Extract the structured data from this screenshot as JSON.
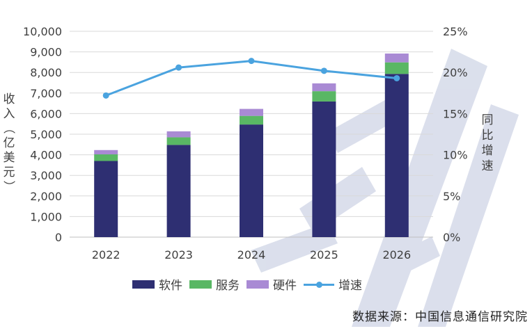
{
  "chart_data": {
    "type": "bar",
    "stacked": true,
    "categories": [
      "2022",
      "2023",
      "2024",
      "2025",
      "2026"
    ],
    "series": [
      {
        "name": "软件",
        "type": "bar",
        "color": "#2e2f72",
        "values": [
          3700,
          4480,
          5470,
          6590,
          7930
        ]
      },
      {
        "name": "服务",
        "type": "bar",
        "color": "#59b764",
        "values": [
          320,
          370,
          420,
          500,
          560
        ]
      },
      {
        "name": "硬件",
        "type": "bar",
        "color": "#a98ad4",
        "values": [
          210,
          290,
          340,
          380,
          430
        ]
      },
      {
        "name": "增速",
        "type": "line",
        "color": "#4aa3df",
        "axis": "right",
        "values": [
          17.2,
          20.6,
          21.4,
          20.2,
          19.3
        ]
      }
    ],
    "ylabel": "收入（亿美元）",
    "y2label": "同比增速",
    "ylim": [
      0,
      10000
    ],
    "y2lim": [
      0,
      25
    ],
    "yticks": [
      "0",
      "1,000",
      "2,000",
      "3,000",
      "4,000",
      "5,000",
      "6,000",
      "7,000",
      "8,000",
      "9,000",
      "10,000"
    ],
    "y2ticks": [
      "0%",
      "5%",
      "10%",
      "15%",
      "20%",
      "25%"
    ],
    "grid": true,
    "legend_position": "bottom"
  },
  "source": "数据来源：中国信息通信研究院"
}
